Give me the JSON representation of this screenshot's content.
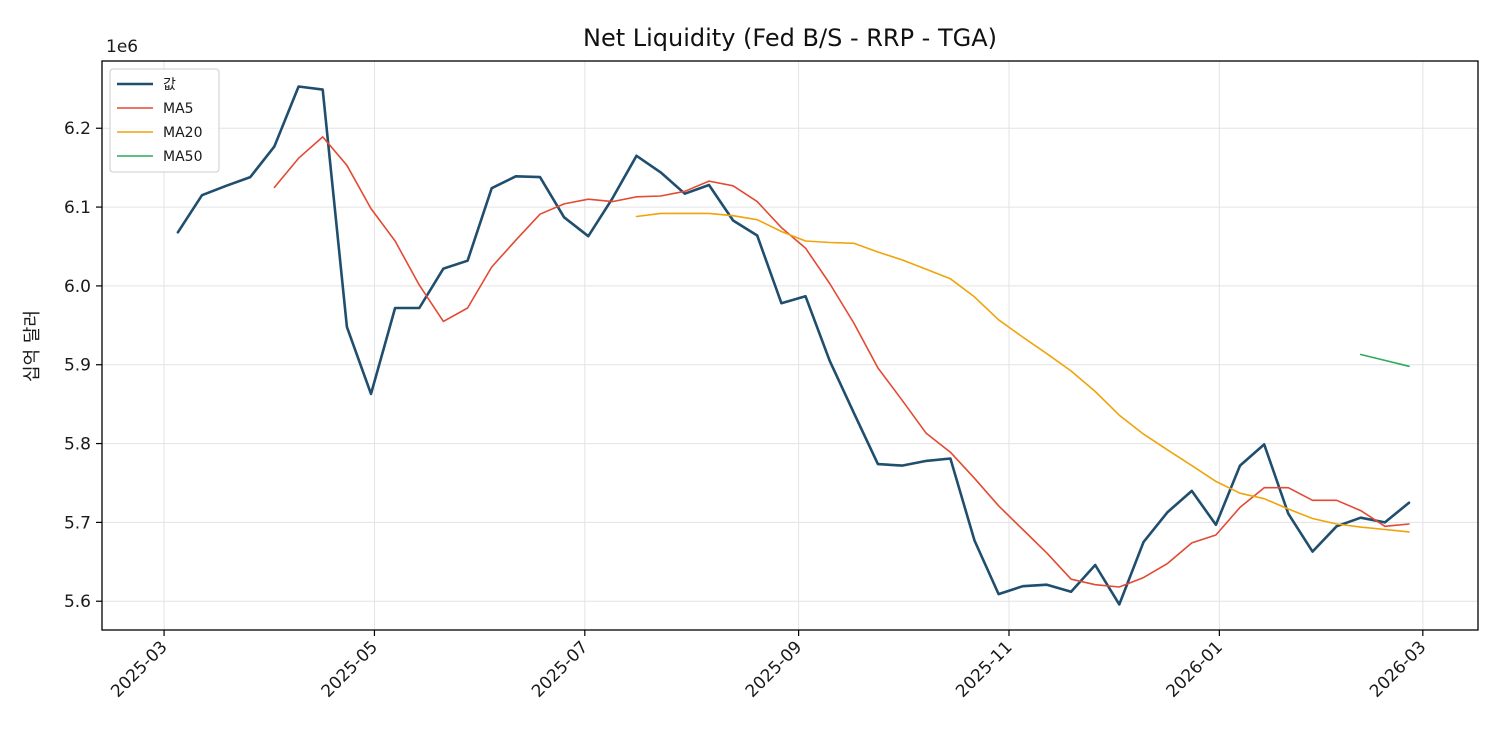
{
  "chart_data": {
    "type": "line",
    "title": "Net Liquidity (Fed B/S - RRP - TGA)",
    "ylabel": "십억 달러",
    "xlabel": "",
    "offset_label": "1e6",
    "x_ticks": [
      "2025-03-01",
      "2025-05-01",
      "2025-07-01",
      "2025-09-01",
      "2025-11-01",
      "2026-01-01",
      "2026-03-01"
    ],
    "x_tick_labels": [
      "2025-03",
      "2025-05",
      "2025-07",
      "2025-09",
      "2025-11",
      "2026-01",
      "2026-03"
    ],
    "y_ticks": [
      5.6,
      5.7,
      5.8,
      5.9,
      6.0,
      6.1,
      6.2
    ],
    "y_tick_labels": [
      "5.6",
      "5.7",
      "5.8",
      "5.9",
      "6.0",
      "6.1",
      "6.2"
    ],
    "xlim": [
      "2025-02-11",
      "2026-03-17"
    ],
    "ylim": [
      5.5635,
      6.2853
    ],
    "grid": true,
    "legend_position": "top-left",
    "dates": [
      "2025-03-05",
      "2025-03-12",
      "2025-03-19",
      "2025-03-26",
      "2025-04-02",
      "2025-04-09",
      "2025-04-16",
      "2025-04-23",
      "2025-04-30",
      "2025-05-07",
      "2025-05-14",
      "2025-05-21",
      "2025-05-28",
      "2025-06-04",
      "2025-06-11",
      "2025-06-18",
      "2025-06-25",
      "2025-07-02",
      "2025-07-09",
      "2025-07-16",
      "2025-07-23",
      "2025-07-30",
      "2025-08-06",
      "2025-08-13",
      "2025-08-20",
      "2025-08-27",
      "2025-09-03",
      "2025-09-10",
      "2025-09-17",
      "2025-09-24",
      "2025-10-01",
      "2025-10-08",
      "2025-10-15",
      "2025-10-22",
      "2025-10-29",
      "2025-11-05",
      "2025-11-12",
      "2025-11-19",
      "2025-11-26",
      "2025-12-03",
      "2025-12-10",
      "2025-12-17",
      "2025-12-24",
      "2025-12-31",
      "2026-01-07",
      "2026-01-14",
      "2026-01-21",
      "2026-01-28",
      "2026-02-04",
      "2026-02-11",
      "2026-02-18",
      "2026-02-25"
    ],
    "series": [
      {
        "name": "값",
        "color": "#1f4e6e",
        "width": 2.6,
        "values": [
          6.068,
          6.115,
          6.127,
          6.138,
          6.177,
          6.253,
          6.249,
          5.948,
          5.863,
          5.972,
          5.972,
          6.022,
          6.032,
          6.124,
          6.139,
          6.138,
          6.087,
          6.063,
          6.111,
          6.165,
          6.144,
          6.117,
          6.128,
          6.083,
          6.064,
          5.978,
          5.987,
          5.905,
          5.839,
          5.774,
          5.772,
          5.778,
          5.781,
          5.677,
          5.609,
          5.619,
          5.621,
          5.612,
          5.646,
          5.596,
          5.675,
          5.713,
          5.74,
          5.697,
          5.772,
          5.799,
          5.711,
          5.663,
          5.695,
          5.706,
          5.7,
          5.725
        ]
      },
      {
        "name": "MA5",
        "color": "#e24a33",
        "width": 1.6,
        "values": [
          null,
          null,
          null,
          null,
          6.125,
          6.162,
          6.189,
          6.153,
          6.098,
          6.057,
          6.001,
          5.955,
          5.972,
          6.024,
          6.058,
          6.091,
          6.104,
          6.11,
          6.107,
          6.113,
          6.114,
          6.12,
          6.133,
          6.127,
          6.107,
          6.074,
          6.048,
          6.003,
          5.953,
          5.896,
          5.855,
          5.813,
          5.789,
          5.756,
          5.721,
          5.691,
          5.661,
          5.628,
          5.621,
          5.618,
          5.63,
          5.648,
          5.674,
          5.684,
          5.719,
          5.744,
          5.744,
          5.728,
          5.728,
          5.715,
          5.695,
          5.698
        ]
      },
      {
        "name": "MA20",
        "color": "#f0a30a",
        "width": 1.6,
        "values": [
          null,
          null,
          null,
          null,
          null,
          null,
          null,
          null,
          null,
          null,
          null,
          null,
          null,
          null,
          null,
          null,
          null,
          null,
          null,
          6.088,
          6.092,
          6.092,
          6.092,
          6.089,
          6.084,
          6.069,
          6.057,
          6.055,
          6.054,
          6.043,
          6.033,
          6.021,
          6.009,
          5.986,
          5.957,
          5.935,
          5.914,
          5.892,
          5.866,
          5.836,
          5.812,
          5.792,
          5.772,
          5.752,
          5.737,
          5.73,
          5.717,
          5.705,
          5.698,
          5.694,
          5.691,
          5.688
        ]
      },
      {
        "name": "MA50",
        "color": "#2eaa5c",
        "width": 1.6,
        "values": [
          null,
          null,
          null,
          null,
          null,
          null,
          null,
          null,
          null,
          null,
          null,
          null,
          null,
          null,
          null,
          null,
          null,
          null,
          null,
          null,
          null,
          null,
          null,
          null,
          null,
          null,
          null,
          null,
          null,
          null,
          null,
          null,
          null,
          null,
          null,
          null,
          null,
          null,
          null,
          null,
          null,
          null,
          null,
          null,
          null,
          null,
          null,
          null,
          null,
          5.913,
          null,
          5.898
        ]
      }
    ]
  }
}
